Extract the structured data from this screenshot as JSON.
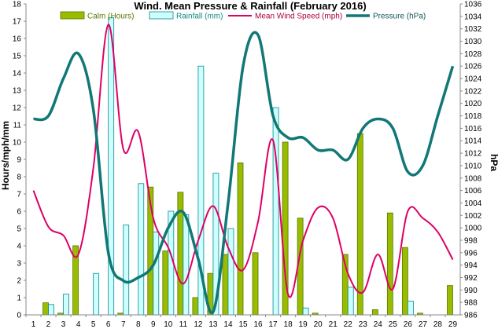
{
  "chart_data": {
    "type": "bar",
    "title": "Wind. Mean Pressure & Rainfall (February 2016)",
    "ylabel": "Hours/mph/mm",
    "y2label": "hPa",
    "ylim": [
      0,
      18
    ],
    "y2lim": [
      986,
      1036
    ],
    "yticks": [
      0,
      1,
      2,
      3,
      4,
      5,
      6,
      7,
      8,
      9,
      10,
      11,
      12,
      13,
      14,
      15,
      16,
      17,
      18
    ],
    "y2ticks": [
      986,
      988,
      990,
      992,
      994,
      996,
      998,
      1000,
      1002,
      1004,
      1006,
      1008,
      1010,
      1012,
      1014,
      1016,
      1018,
      1020,
      1022,
      1024,
      1026,
      1028,
      1030,
      1032,
      1034,
      1036
    ],
    "legend_position": "top",
    "categories": [
      "1",
      "2",
      "3",
      "4",
      "5",
      "6",
      "7",
      "8",
      "9",
      "10",
      "11",
      "12",
      "13",
      "14",
      "15",
      "16",
      "17",
      "18",
      "19",
      "20",
      "21",
      "22",
      "23",
      "24",
      "25",
      "26",
      "27",
      "28",
      "29"
    ],
    "series": [
      {
        "name": "Calm (Hours)",
        "type": "bar",
        "axis": "left",
        "color": "#99bb00",
        "values": [
          0,
          0.7,
          0.1,
          4.0,
          0,
          0,
          0.1,
          0,
          7.4,
          3.7,
          7.1,
          1.0,
          2.4,
          3.5,
          8.8,
          3.6,
          0,
          10.0,
          5.6,
          0.1,
          0,
          3.5,
          10.5,
          0.3,
          5.9,
          3.9,
          0.1,
          0,
          1.7
        ]
      },
      {
        "name": "Rainfall (mm)",
        "type": "bar",
        "axis": "left",
        "color": "#ccffff",
        "values": [
          0,
          0.6,
          1.2,
          0,
          2.4,
          17.2,
          5.2,
          7.6,
          4.8,
          6.0,
          5.8,
          14.4,
          8.2,
          5.0,
          0,
          0,
          12.0,
          0,
          0.4,
          0,
          0,
          1.6,
          0,
          0,
          0,
          0.8,
          0,
          0,
          0
        ]
      },
      {
        "name": "Mean Wind Speed (mph)",
        "type": "line",
        "axis": "left",
        "color": "#dd0066",
        "values": [
          7.2,
          5.1,
          4.6,
          3.5,
          8.5,
          16.8,
          9.6,
          10.6,
          5.6,
          3.9,
          1.8,
          4.3,
          6.3,
          3.9,
          2.6,
          5.4,
          10.1,
          1.2,
          4.3,
          6.2,
          5.6,
          2.4,
          1.3,
          3.5,
          1.5,
          6.0,
          5.6,
          4.8,
          3.2
        ]
      },
      {
        "name": "Pressure (hPa)",
        "type": "line",
        "axis": "right",
        "color": "#117777",
        "values": [
          1017.5,
          1018,
          1024,
          1028,
          1019,
          996,
          991.5,
          992,
          994,
          1000,
          1002.5,
          995,
          986.5,
          1004,
          1026,
          1031,
          1018,
          1014.5,
          1014.5,
          1012.5,
          1012.5,
          1011,
          1016,
          1017.5,
          1016,
          1009,
          1010,
          1018,
          1026
        ]
      }
    ]
  }
}
